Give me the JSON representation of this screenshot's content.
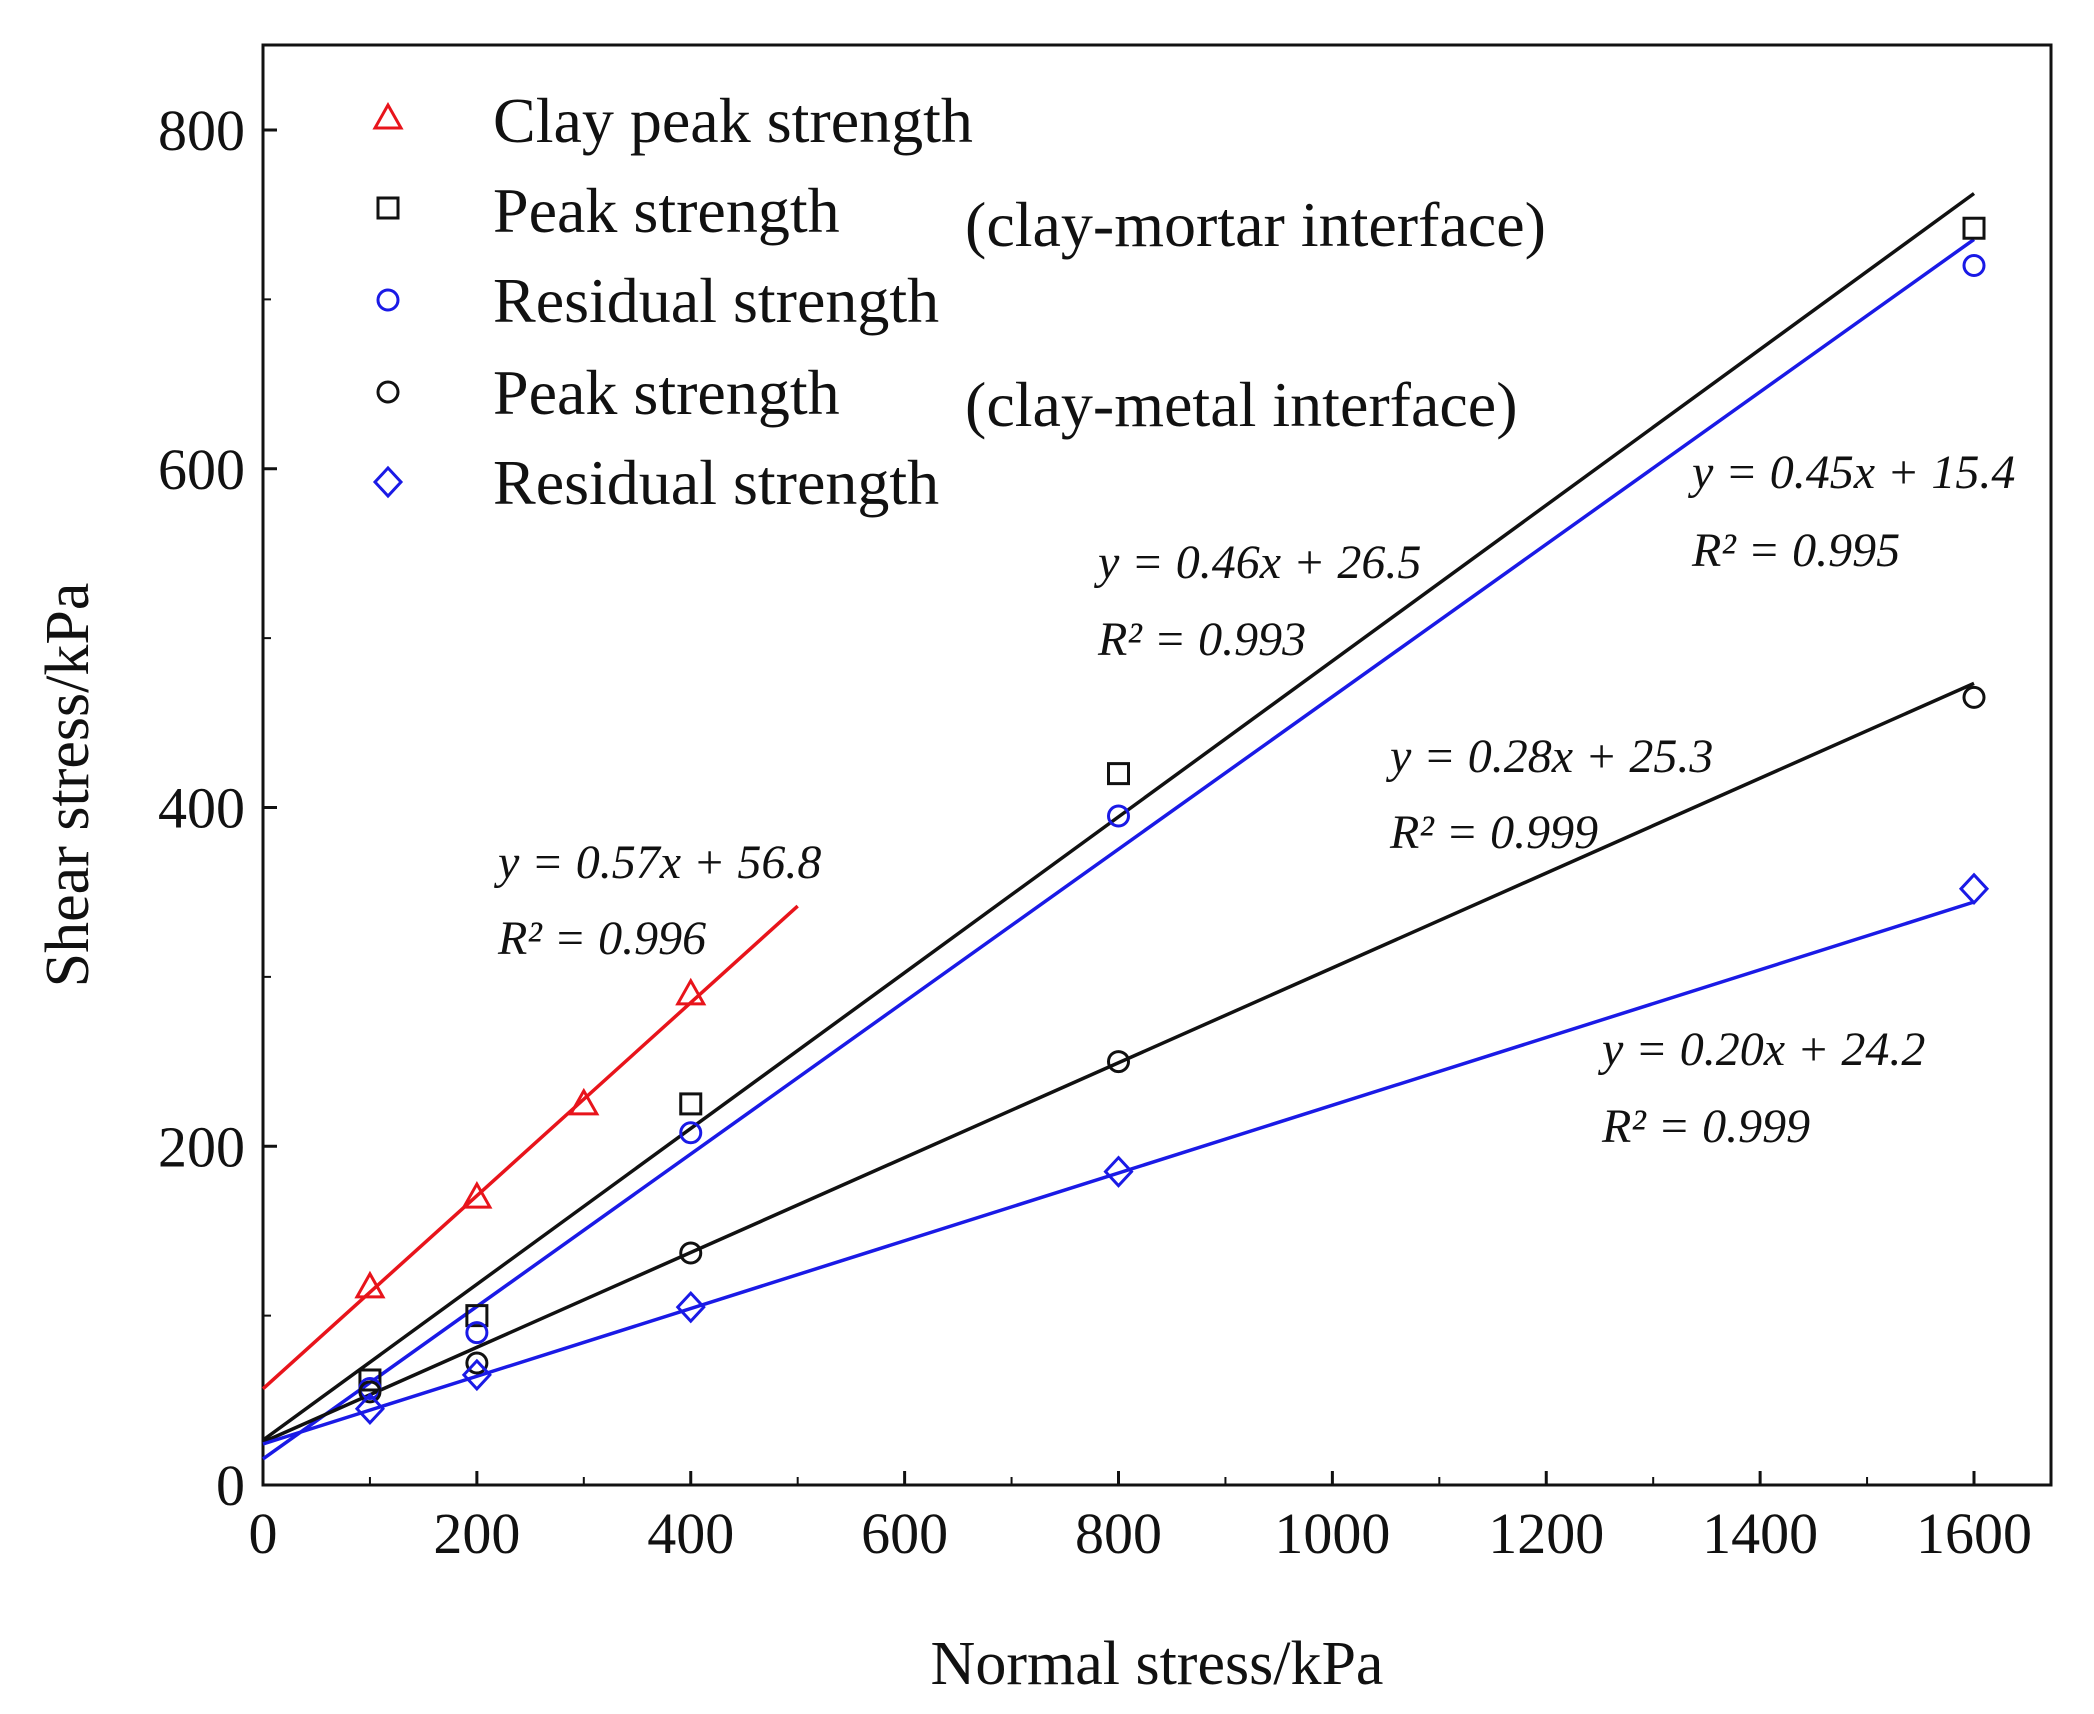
{
  "chart_data": {
    "type": "scatter",
    "xlabel": "Normal stress/kPa",
    "ylabel": "Shear stress/kPa",
    "xlim": [
      0,
      1650
    ],
    "ylim": [
      0,
      850
    ],
    "xticks": [
      0,
      200,
      400,
      600,
      800,
      1000,
      1200,
      1400,
      1600
    ],
    "yticks": [
      0,
      200,
      400,
      600,
      800
    ],
    "grid": false,
    "legend_position": "top-left",
    "series": [
      {
        "name": "Clay peak strength",
        "marker": "triangle",
        "color": "#e8141b",
        "x": [
          100,
          200,
          300,
          400
        ],
        "y": [
          117,
          170,
          225,
          290
        ],
        "fit": {
          "slope": 0.57,
          "intercept": 56.8,
          "x_range": [
            0,
            500
          ]
        },
        "equation": "y = 0.57x + 56.8",
        "r2": "R² = 0.996"
      },
      {
        "name": "Peak strength",
        "marker": "square",
        "color": "#111111",
        "x": [
          100,
          200,
          400,
          800,
          1600
        ],
        "y": [
          62,
          100,
          225,
          420,
          742
        ],
        "fit": {
          "slope": 0.46,
          "intercept": 26.5,
          "x_range": [
            0,
            1600
          ]
        },
        "equation": "y = 0.46x + 26.5",
        "r2": "R² = 0.993"
      },
      {
        "name": "Residual strength",
        "marker": "circle",
        "color": "#1a1ae6",
        "x": [
          100,
          200,
          400,
          800,
          1600
        ],
        "y": [
          57,
          90,
          208,
          395,
          720
        ],
        "fit": {
          "slope": 0.45,
          "intercept": 15.4,
          "x_range": [
            0,
            1600
          ]
        },
        "equation": "y = 0.45x + 15.4",
        "r2": "R² = 0.995"
      },
      {
        "name": "Peak strength",
        "marker": "circle",
        "color": "#111111",
        "x": [
          100,
          200,
          400,
          800,
          1600
        ],
        "y": [
          55,
          72,
          137,
          250,
          465
        ],
        "fit": {
          "slope": 0.28,
          "intercept": 25.3,
          "x_range": [
            0,
            1600
          ]
        },
        "equation": "y = 0.28x + 25.3",
        "r2": "R² = 0.999"
      },
      {
        "name": "Residual strength",
        "marker": "diamond",
        "color": "#1a1ae6",
        "x": [
          100,
          200,
          400,
          800,
          1600
        ],
        "y": [
          45,
          65,
          105,
          185,
          352
        ],
        "fit": {
          "slope": 0.2,
          "intercept": 24.2,
          "x_range": [
            0,
            1600
          ]
        },
        "equation": "y = 0.20x + 24.2",
        "r2": "R² = 0.999"
      }
    ],
    "legend_groups": [
      "(clay-mortar interface)",
      "(clay-metal interface)"
    ]
  }
}
